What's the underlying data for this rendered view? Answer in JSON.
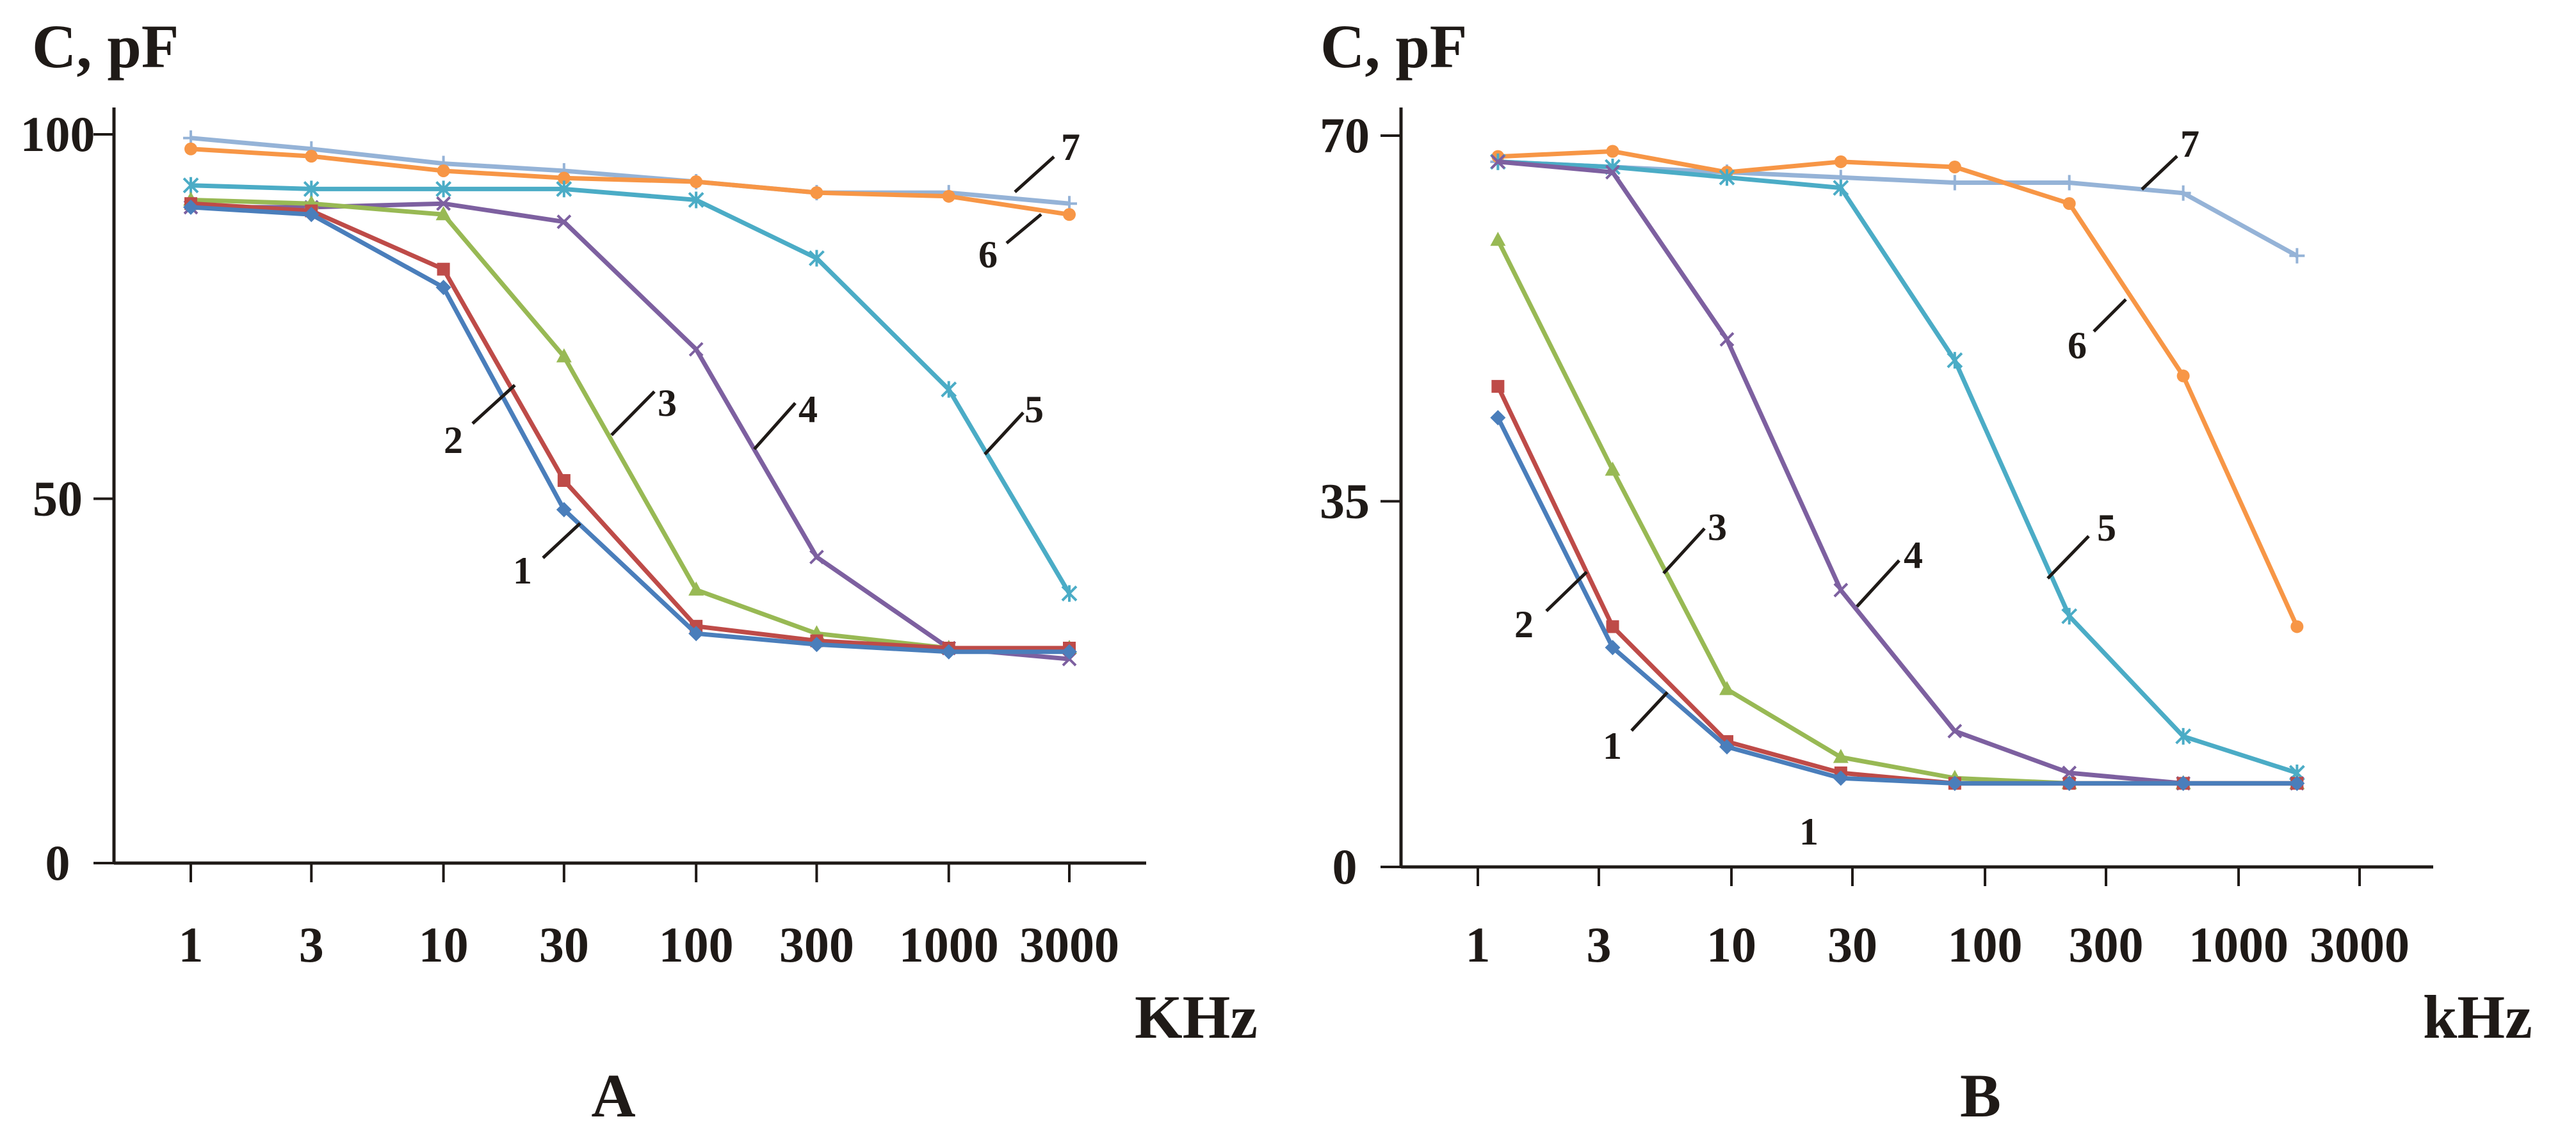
{
  "colors": {
    "1": "#4a7ebb",
    "2": "#be4b48",
    "3": "#98b954",
    "4": "#7d60a0",
    "5": "#4bacc6",
    "6": "#f79646",
    "7": "#95b3d7",
    "axis": "#1f1a17"
  },
  "chart_data": [
    {
      "type": "line",
      "panel_label": "A",
      "ylabel": "C, pF",
      "xlabel": "KHz",
      "x_scale": "log",
      "x_ticks": [
        1,
        3,
        10,
        30,
        100,
        300,
        1000,
        3000
      ],
      "x_tick_labels": [
        "1",
        "3",
        "10",
        "30",
        "100",
        "300",
        "1000",
        "3000"
      ],
      "y_ticks": [
        0,
        50,
        100
      ],
      "y_tick_labels": [
        "0",
        "50",
        "100"
      ],
      "ylim": [
        0,
        100
      ],
      "x": [
        1,
        3,
        10,
        30,
        100,
        300,
        1000,
        3000
      ],
      "series": [
        {
          "name": "1",
          "marker": "diamond",
          "values": [
            90,
            89,
            79,
            48.5,
            31.5,
            30,
            29,
            29
          ]
        },
        {
          "name": "2",
          "marker": "square",
          "values": [
            90.5,
            89.5,
            81.5,
            52.5,
            32.5,
            30.5,
            29.5,
            29.5
          ]
        },
        {
          "name": "3",
          "marker": "triangle",
          "values": [
            91,
            90.5,
            89,
            69.5,
            37.5,
            31.5,
            29.5,
            29.5
          ]
        },
        {
          "name": "4",
          "marker": "x",
          "values": [
            90,
            90,
            90.5,
            88,
            70.5,
            42,
            29.5,
            28
          ]
        },
        {
          "name": "5",
          "marker": "star",
          "values": [
            93,
            92.5,
            92.5,
            92.5,
            91,
            83,
            65,
            37
          ]
        },
        {
          "name": "6",
          "marker": "circle",
          "values": [
            98,
            97,
            95,
            94,
            93.5,
            92,
            91.5,
            89
          ]
        },
        {
          "name": "7",
          "marker": "plus",
          "values": [
            99.5,
            98,
            96,
            95,
            93.5,
            92,
            92,
            90.5
          ]
        }
      ],
      "annotations": [
        "1",
        "2",
        "3",
        "4",
        "5",
        "6",
        "7"
      ]
    },
    {
      "type": "line",
      "panel_label": "B",
      "ylabel": "C, pF",
      "xlabel": "kHz",
      "x_scale": "log",
      "x_ticks": [
        1,
        3,
        10,
        30,
        100,
        300,
        1000,
        3000
      ],
      "x_tick_labels": [
        "1",
        "3",
        "10",
        "30",
        "100",
        "300",
        "1000",
        "3000"
      ],
      "y_ticks": [
        0,
        35,
        70
      ],
      "y_tick_labels": [
        "0",
        "35",
        "70"
      ],
      "ylim": [
        0,
        70
      ],
      "x": [
        1.2,
        3.4,
        9.6,
        27,
        76,
        215,
        605,
        1700
      ],
      "series": [
        {
          "name": "1",
          "marker": "diamond",
          "values": [
            43,
            21,
            11.5,
            8.5,
            8,
            8,
            8,
            8
          ]
        },
        {
          "name": "2",
          "marker": "square",
          "values": [
            46,
            23,
            12,
            9,
            8,
            8,
            8,
            8
          ]
        },
        {
          "name": "3",
          "marker": "triangle",
          "values": [
            60,
            38,
            17,
            10.5,
            8.5,
            8,
            8,
            8
          ]
        },
        {
          "name": "4",
          "marker": "x",
          "values": [
            67.5,
            66.5,
            50.5,
            26.5,
            13,
            9,
            8,
            8
          ]
        },
        {
          "name": "5",
          "marker": "star",
          "values": [
            67.5,
            67,
            66,
            65,
            48.5,
            24,
            12.5,
            9
          ]
        },
        {
          "name": "6",
          "marker": "circle",
          "values": [
            68,
            68.5,
            66.5,
            67.5,
            67,
            63.5,
            47,
            23
          ]
        },
        {
          "name": "7",
          "marker": "plus",
          "values": [
            67.5,
            67,
            66.5,
            66,
            65.5,
            65.5,
            64.5,
            58.5
          ]
        }
      ],
      "annotations": [
        "1",
        "2",
        "3",
        "4",
        "5",
        "6",
        "7",
        "1"
      ]
    }
  ]
}
